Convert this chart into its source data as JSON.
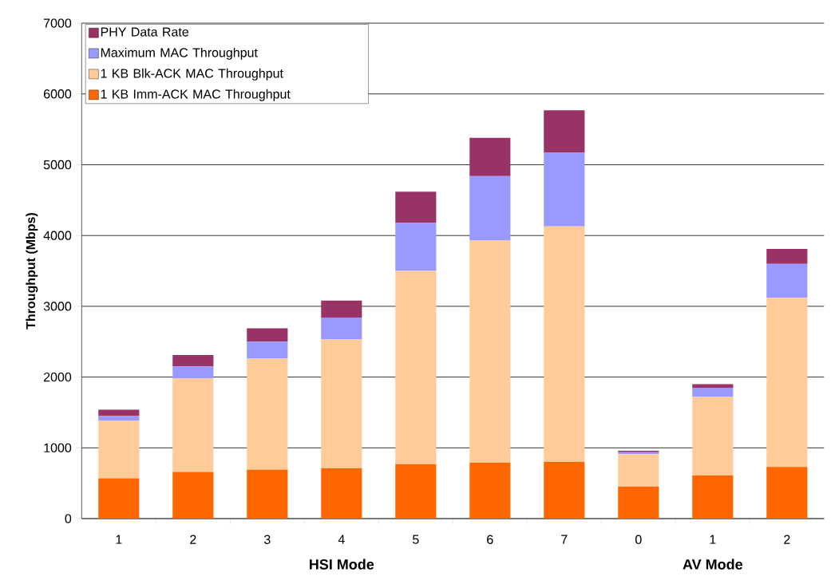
{
  "chart_data": {
    "type": "bar",
    "stacked": true,
    "ylabel": "Throughput (Mbps)",
    "categories": [
      "1",
      "2",
      "3",
      "4",
      "5",
      "6",
      "7",
      "0",
      "1",
      "2"
    ],
    "annotations": [
      "HSI Mode",
      "AV Mode"
    ],
    "series": [
      {
        "name": "1 KB Imm-ACK MAC Throughput",
        "color": "#ff6600",
        "values": [
          570,
          660,
          690,
          710,
          770,
          790,
          800,
          450,
          610,
          730
        ]
      },
      {
        "name": "1 KB Blk-ACK MAC Throughput",
        "color": "#ffcc99",
        "values": [
          810,
          1320,
          1570,
          1820,
          2730,
          3140,
          3330,
          460,
          1110,
          2390
        ]
      },
      {
        "name": "Maximum MAC Throughput",
        "color": "#9999ff",
        "values": [
          70,
          170,
          240,
          310,
          680,
          910,
          1040,
          30,
          130,
          480
        ]
      },
      {
        "name": "PHY Data Rate",
        "color": "#993366",
        "values": [
          90,
          160,
          190,
          240,
          440,
          540,
          600,
          20,
          50,
          210
        ]
      }
    ],
    "ylim": [
      0,
      7000
    ],
    "yticks": [
      0,
      1000,
      2000,
      3000,
      4000,
      5000,
      6000,
      7000
    ],
    "grid": "y",
    "legend": "top left"
  }
}
